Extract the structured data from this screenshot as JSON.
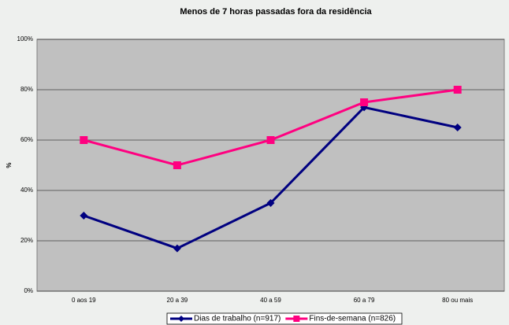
{
  "chart_data": {
    "type": "line",
    "title": "Menos de 7 horas passadas fora da residência",
    "ylabel": "%",
    "categories": [
      "0 aos 19",
      "20 a 39",
      "40 a 59",
      "60 a 79",
      "80 ou mais"
    ],
    "series": [
      {
        "name": "Dias de trabalho (n=917)",
        "color": "#000080",
        "marker": "diamond",
        "values": [
          30,
          17,
          35,
          73,
          65
        ]
      },
      {
        "name": "Fins-de-semana (n=826)",
        "color": "#ff0080",
        "marker": "square",
        "values": [
          60,
          50,
          60,
          75,
          80
        ]
      }
    ],
    "ylim": [
      0,
      100
    ],
    "yticks": [
      {
        "value": 0,
        "label": "0%"
      },
      {
        "value": 20,
        "label": "20%"
      },
      {
        "value": 40,
        "label": "40%"
      },
      {
        "value": 60,
        "label": "60%"
      },
      {
        "value": 80,
        "label": "80%"
      },
      {
        "value": 100,
        "label": "100%"
      }
    ],
    "grid": true,
    "legend": "bottom"
  }
}
